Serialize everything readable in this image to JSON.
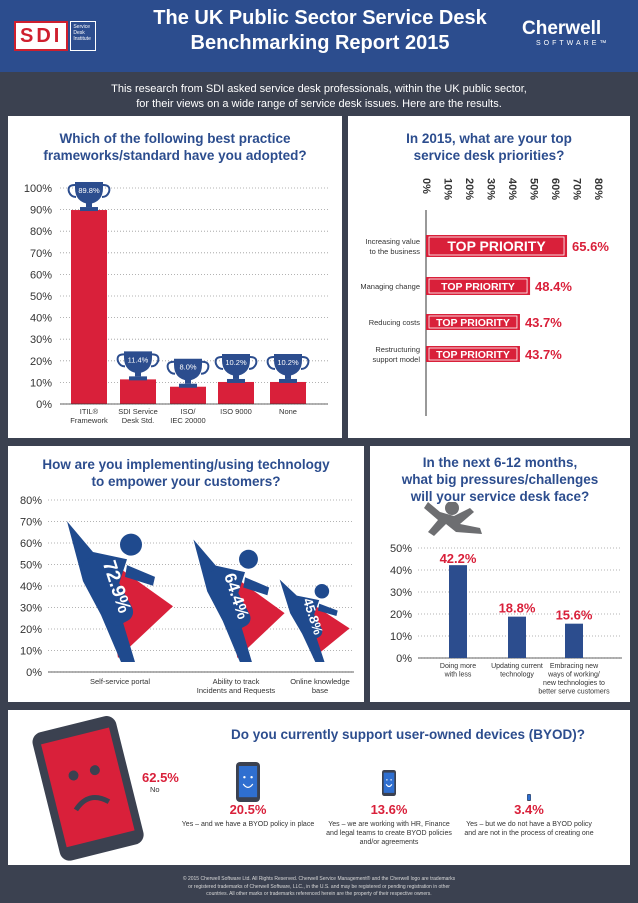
{
  "header": {
    "title_line1": "The UK Public Sector Service Desk",
    "title_line2": "Benchmarking Report 2015",
    "sdi_logo_text": "SDI",
    "sdi_tag": "Service Desk Institute",
    "cherwell_name": "Cherwell",
    "cherwell_sub": "SOFTWARE™"
  },
  "intro": {
    "line1": "This research from SDI asked service desk professionals, within the UK public sector,",
    "line2": "for their views on a wide range of service desk issues. Here are the results."
  },
  "colors": {
    "red": "#d9203a",
    "navy": "#2c4d8e",
    "blue": "#1f4a8e",
    "dark": "#3b4150",
    "grey": "#6d6e71"
  },
  "chart_data": [
    {
      "type": "bar",
      "title_line1": "Which of the following best practice",
      "title_line2": "frameworks/standard have you adopted?",
      "categories": [
        [
          "ITIL®",
          "Framework"
        ],
        [
          "SDI Service",
          "Desk Std."
        ],
        [
          "ISO/",
          "IEC 20000"
        ],
        [
          "ISO 9000"
        ],
        [
          "None"
        ]
      ],
      "values": [
        89.8,
        11.4,
        8.0,
        10.2,
        10.2
      ],
      "labels": [
        "89.8%",
        "11.4%",
        "8.0%",
        "10.2%",
        "10.2%"
      ],
      "yticks": [
        "0%",
        "10%",
        "20%",
        "30%",
        "40%",
        "50%",
        "60%",
        "70%",
        "80%",
        "90%",
        "100%"
      ],
      "ylim": [
        0,
        100
      ]
    },
    {
      "type": "bar",
      "orientation": "horizontal",
      "title_line1": "In 2015, what are your top",
      "title_line2": "service desk priorities?",
      "categories": [
        [
          "Increasing value",
          "to the business"
        ],
        [
          "Managing change"
        ],
        [
          "Reducing costs"
        ],
        [
          "Restructuring",
          "support model"
        ]
      ],
      "values": [
        65.6,
        48.4,
        43.7,
        43.7
      ],
      "labels": [
        "65.6%",
        "48.4%",
        "43.7%",
        "43.7%"
      ],
      "bar_text": "TOP PRIORITY",
      "xticks": [
        "0%",
        "10%",
        "20%",
        "30%",
        "40%",
        "50%",
        "60%",
        "70%",
        "80%"
      ],
      "xlim": [
        0,
        80
      ]
    },
    {
      "type": "bar",
      "title_line1": "How are you implementing/using technology",
      "title_line2": "to empower your customers?",
      "categories": [
        [
          "Self-service portal"
        ],
        [
          "Ability to track",
          "Incidents and Requests"
        ],
        [
          "Online knowledge",
          "base"
        ]
      ],
      "values": [
        72.9,
        64.4,
        45.8
      ],
      "labels": [
        "72.9%",
        "64.4%",
        "45.8%"
      ],
      "yticks": [
        "0%",
        "10%",
        "20%",
        "30%",
        "40%",
        "50%",
        "60%",
        "70%",
        "80%"
      ],
      "ylim": [
        0,
        80
      ]
    },
    {
      "type": "bar",
      "title_line1": "In the next 6-12 months,",
      "title_line2": "what big pressures/challenges",
      "title_line3": "will your service desk face?",
      "categories": [
        [
          "Doing more",
          "with less"
        ],
        [
          "Updating current",
          "technology"
        ],
        [
          "Embracing new",
          "ways of working/",
          "new technologies to",
          "better serve customers"
        ]
      ],
      "values": [
        42.2,
        18.8,
        15.6
      ],
      "labels": [
        "42.2%",
        "18.8%",
        "15.6%"
      ],
      "yticks": [
        "0%",
        "10%",
        "20%",
        "30%",
        "40%",
        "50%"
      ],
      "ylim": [
        0,
        50
      ]
    },
    {
      "type": "pie",
      "title": "Do you currently support user-owned devices (BYOD)?",
      "items": [
        {
          "value": 62.5,
          "label": "62.5%",
          "desc": "No"
        },
        {
          "value": 20.5,
          "label": "20.5%",
          "desc": "Yes – and we have a BYOD policy in place"
        },
        {
          "value": 13.6,
          "label": "13.6%",
          "desc": "Yes – we are working with HR, Finance and legal teams to create BYOD policies and/or agreements"
        },
        {
          "value": 3.4,
          "label": "3.4%",
          "desc": "Yes – but we do not have a BYOD policy and are not in the process of creating one"
        }
      ]
    }
  ],
  "footer": {
    "line1": "© 2015 Cherwell Software Ltd. All Rights Reserved. Cherwell Service Management® and the Cherwell logo are trademarks",
    "line2": "or registered trademarks of Cherwell Software, LLC., in the U.S. and may be registered or pending registration in other",
    "line3": "countries. All other marks or trademarks referenced herein are the property of their respective owners."
  }
}
